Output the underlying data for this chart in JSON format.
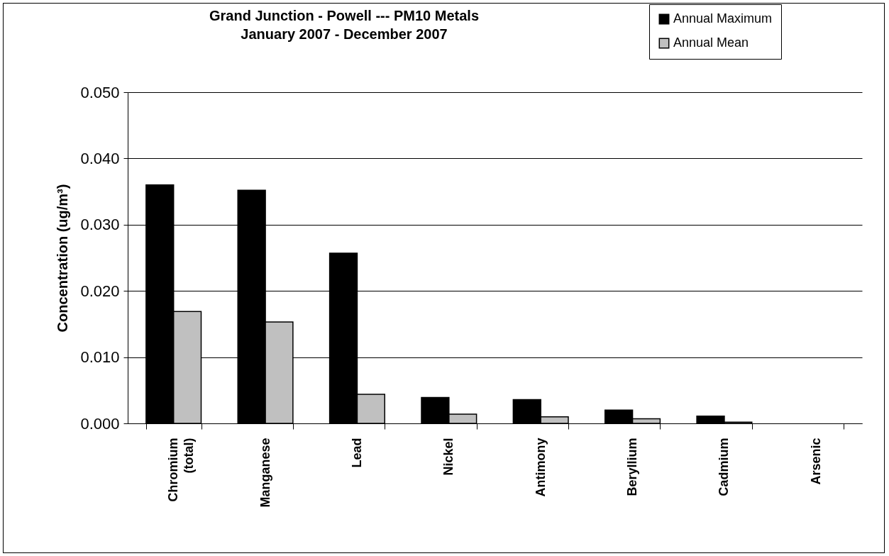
{
  "chart_data": {
    "type": "bar",
    "title": "Grand Junction - Powell --- PM10 Metals",
    "subtitle": "January 2007 - December 2007",
    "ylabel": "Concentration (ug/m³)",
    "categories": [
      "Chromium\n(total)",
      "Manganese",
      "Lead",
      "Nickel",
      "Antimony",
      "Beryllium",
      "Cadmium",
      "Arsenic"
    ],
    "series": [
      {
        "name": "Annual Maximum",
        "color": "#000000",
        "values": [
          0.036,
          0.0352,
          0.0257,
          0.0039,
          0.0036,
          0.002,
          0.0011,
          0
        ]
      },
      {
        "name": "Annual Mean",
        "color": "#c0c0c0",
        "values": [
          0.0169,
          0.0153,
          0.0044,
          0.0014,
          0.001,
          0.0007,
          0.0002,
          0
        ]
      }
    ],
    "ylim": [
      0,
      0.05
    ],
    "yticks": [
      {
        "value": 0,
        "label": "0.000"
      },
      {
        "value": 0.01,
        "label": "0.010"
      },
      {
        "value": 0.02,
        "label": "0.020"
      },
      {
        "value": 0.03,
        "label": "0.030"
      },
      {
        "value": 0.04,
        "label": "0.040"
      },
      {
        "value": 0.05,
        "label": "0.050"
      }
    ],
    "grid": "y",
    "legend": "top right"
  }
}
